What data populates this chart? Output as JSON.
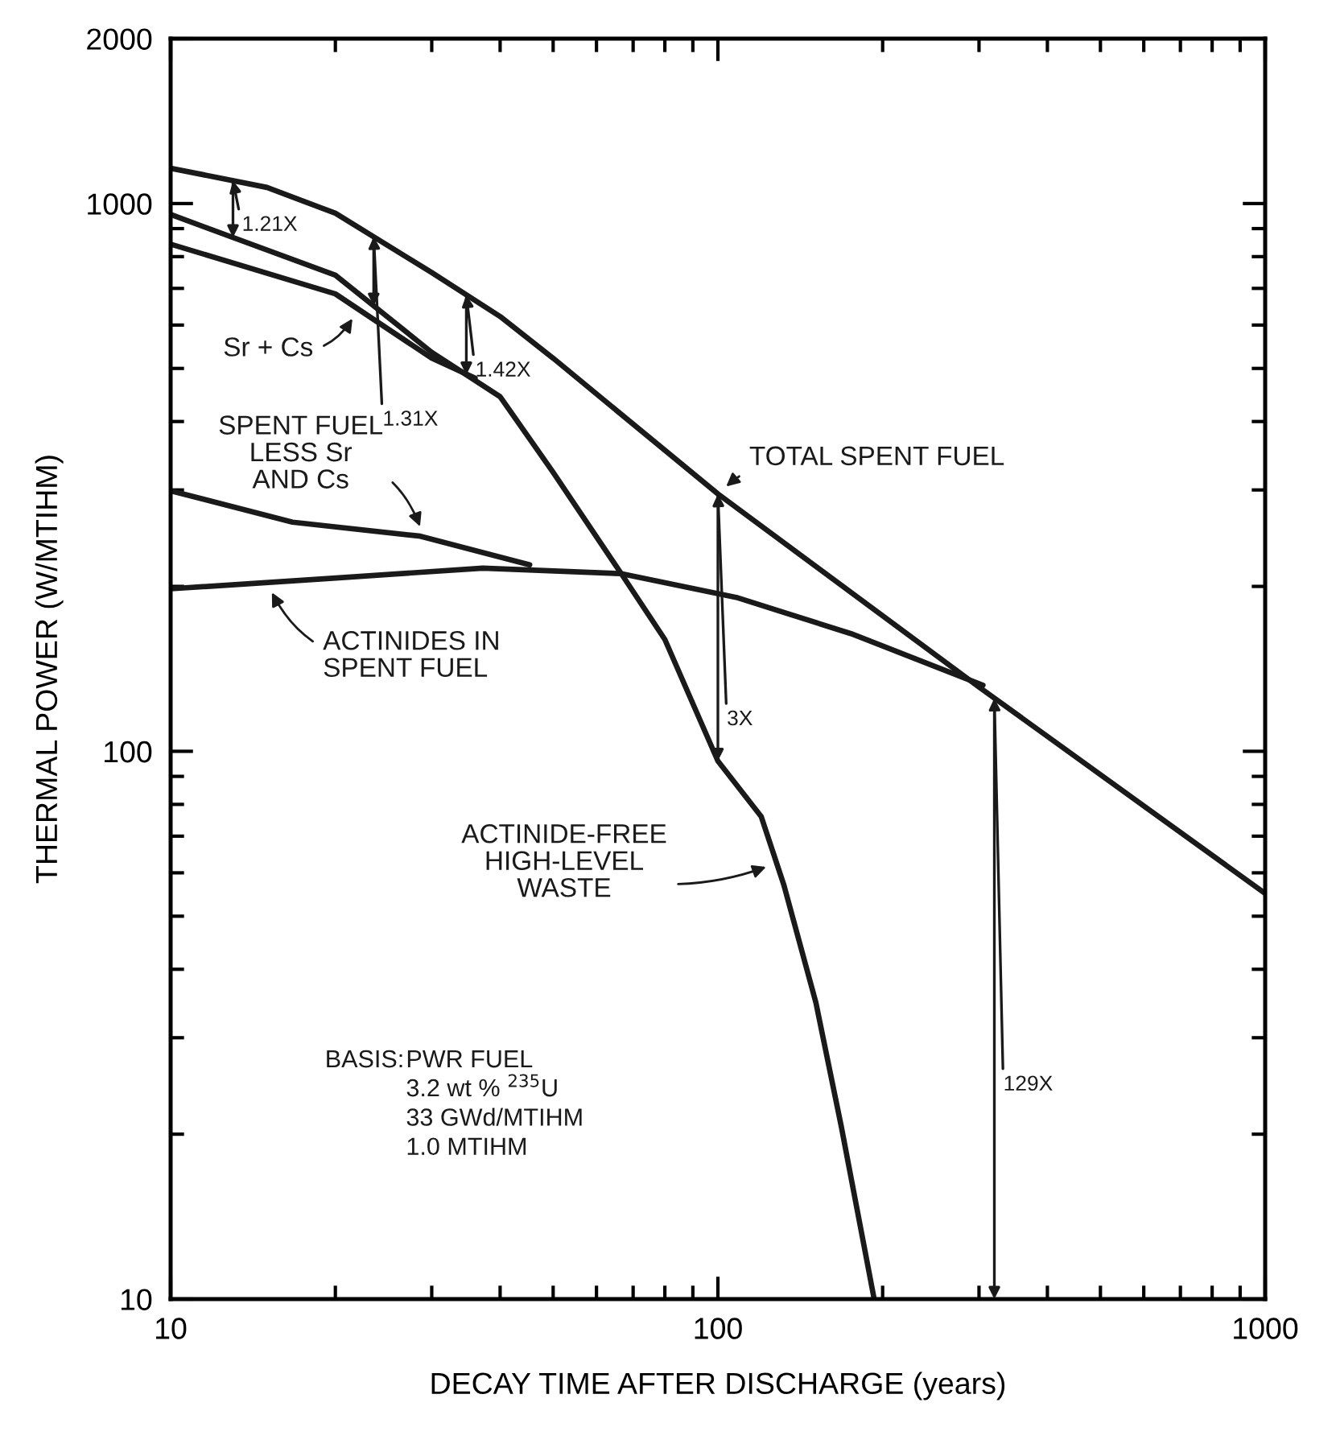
{
  "chart_data": {
    "type": "line",
    "xlabel": "DECAY TIME AFTER DISCHARGE (years)",
    "ylabel": "THERMAL POWER (W/MTIHM)",
    "log": "xy",
    "xlim": [
      10,
      1000
    ],
    "ylim": [
      10,
      2000
    ],
    "xticks": [
      10,
      100,
      1000
    ],
    "yticks": [
      10,
      100,
      1000,
      2000
    ],
    "grid": false,
    "legend": "left",
    "marker": "none",
    "line_style": "solid",
    "series": [
      {
        "name": "TOTAL SPENT FUEL",
        "color": "#1a1a1a",
        "x": [
          10,
          15,
          20,
          30,
          40,
          50,
          100,
          300,
          1000
        ],
        "values": [
          1160,
          1070,
          960,
          748,
          622,
          522,
          295,
          131,
          55
        ]
      },
      {
        "name": "ACTINIDE-FREE\nHIGH-LEVEL\nWASTE",
        "color": "#1a1a1a",
        "x": [
          10,
          20,
          30,
          40,
          50,
          66.6,
          80,
          100,
          120,
          132,
          151,
          168,
          193
        ],
        "values": [
          955,
          740,
          535,
          444,
          323,
          211,
          160,
          96,
          76,
          57,
          34.8,
          20.7,
          10
        ]
      },
      {
        "name": "Sr + Cs",
        "color": "#1a1a1a",
        "x": [
          10,
          20,
          30,
          36
        ],
        "values": [
          843,
          684,
          522,
          480
        ]
      },
      {
        "name": "SPENT FUEL\nLESS Sr\nAND Cs",
        "color": "#1a1a1a",
        "x": [
          10,
          16.7,
          28.6,
          45.3
        ],
        "values": [
          299,
          262,
          247,
          219
        ]
      },
      {
        "name": "ACTINIDES IN\nSPENT FUEL",
        "color": "#1a1a1a",
        "x": [
          10,
          19.8,
          37.2,
          66.6,
          108,
          175,
          305
        ],
        "values": [
          198,
          207,
          216,
          211,
          191,
          164,
          132
        ]
      }
    ],
    "annotations": [
      {
        "text": "1.21X",
        "x": 13,
        "y": 1101
      },
      {
        "text": "1.31X",
        "x": 23.5,
        "y": 870
      },
      {
        "text": "1.42X",
        "x": 34.7,
        "y": 681
      },
      {
        "text": "3X",
        "x": 100,
        "y": 295
      },
      {
        "text": "129X",
        "x": 320,
        "y": 125
      },
      "BASIS:",
      "PWR FUEL\n3.2 wt % $^{235}$U\n33 GWd/MTIHM\n1.0 MTIHM"
    ]
  }
}
